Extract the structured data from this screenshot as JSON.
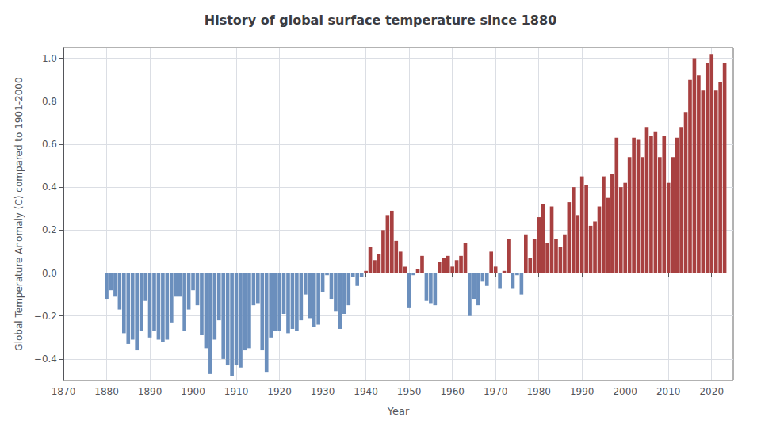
{
  "chart_data": {
    "type": "bar",
    "title": "History of global surface temperature since 1880",
    "xlabel": "Year",
    "ylabel": "Global Temperature Anomaly (C) compared to 1901-2000",
    "x": [
      1880,
      1881,
      1882,
      1883,
      1884,
      1885,
      1886,
      1887,
      1888,
      1889,
      1890,
      1891,
      1892,
      1893,
      1894,
      1895,
      1896,
      1897,
      1898,
      1899,
      1900,
      1901,
      1902,
      1903,
      1904,
      1905,
      1906,
      1907,
      1908,
      1909,
      1910,
      1911,
      1912,
      1913,
      1914,
      1915,
      1916,
      1917,
      1918,
      1919,
      1920,
      1921,
      1922,
      1923,
      1924,
      1925,
      1926,
      1927,
      1928,
      1929,
      1930,
      1931,
      1932,
      1933,
      1934,
      1935,
      1936,
      1937,
      1938,
      1939,
      1940,
      1941,
      1942,
      1943,
      1944,
      1945,
      1946,
      1947,
      1948,
      1949,
      1950,
      1951,
      1952,
      1953,
      1954,
      1955,
      1956,
      1957,
      1958,
      1959,
      1960,
      1961,
      1962,
      1963,
      1964,
      1965,
      1966,
      1967,
      1968,
      1969,
      1970,
      1971,
      1972,
      1973,
      1974,
      1975,
      1976,
      1977,
      1978,
      1979,
      1980,
      1981,
      1982,
      1983,
      1984,
      1985,
      1986,
      1987,
      1988,
      1989,
      1990,
      1991,
      1992,
      1993,
      1994,
      1995,
      1996,
      1997,
      1998,
      1999,
      2000,
      2001,
      2002,
      2003,
      2004,
      2005,
      2006,
      2007,
      2008,
      2009,
      2010,
      2011,
      2012,
      2013,
      2014,
      2015,
      2016,
      2017,
      2018,
      2019,
      2020,
      2021,
      2022,
      2023
    ],
    "values": [
      -0.12,
      -0.08,
      -0.11,
      -0.17,
      -0.28,
      -0.33,
      -0.31,
      -0.36,
      -0.27,
      -0.13,
      -0.3,
      -0.27,
      -0.31,
      -0.32,
      -0.31,
      -0.23,
      -0.11,
      -0.11,
      -0.27,
      -0.17,
      -0.08,
      -0.15,
      -0.29,
      -0.35,
      -0.47,
      -0.31,
      -0.22,
      -0.4,
      -0.43,
      -0.48,
      -0.43,
      -0.44,
      -0.36,
      -0.35,
      -0.15,
      -0.14,
      -0.36,
      -0.46,
      -0.3,
      -0.27,
      -0.27,
      -0.19,
      -0.28,
      -0.26,
      -0.27,
      -0.22,
      -0.1,
      -0.21,
      -0.25,
      -0.24,
      -0.09,
      -0.01,
      -0.12,
      -0.18,
      -0.26,
      -0.19,
      -0.15,
      -0.02,
      -0.06,
      -0.02,
      0.01,
      0.12,
      0.06,
      0.09,
      0.2,
      0.27,
      0.29,
      0.15,
      0.1,
      0.03,
      -0.16,
      -0.01,
      0.02,
      0.08,
      -0.13,
      -0.14,
      -0.15,
      0.05,
      0.07,
      0.08,
      0.03,
      0.06,
      0.08,
      0.14,
      -0.2,
      -0.12,
      -0.15,
      -0.04,
      -0.06,
      0.1,
      0.03,
      -0.07,
      0.01,
      0.16,
      -0.07,
      -0.01,
      -0.1,
      0.18,
      0.07,
      0.16,
      0.26,
      0.32,
      0.14,
      0.31,
      0.16,
      0.12,
      0.18,
      0.33,
      0.4,
      0.27,
      0.45,
      0.41,
      0.22,
      0.24,
      0.31,
      0.45,
      0.35,
      0.46,
      0.63,
      0.4,
      0.42,
      0.54,
      0.63,
      0.62,
      0.54,
      0.68,
      0.64,
      0.66,
      0.54,
      0.64,
      0.42,
      0.54,
      0.63,
      0.68,
      0.75,
      0.9,
      1.0,
      0.92,
      0.85,
      0.98,
      1.02,
      0.85,
      0.89,
      0.98
    ],
    "colors": [
      "#6b8fbd",
      "#6b8fbd",
      "#6b8fbd",
      "#6b8fbd",
      "#6b8fbd",
      "#6b8fbd",
      "#6b8fbd",
      "#6b8fbd",
      "#6b8fbd",
      "#6b8fbd",
      "#6b8fbd",
      "#6b8fbd",
      "#6b8fbd",
      "#6b8fbd",
      "#6b8fbd",
      "#6b8fbd",
      "#6b8fbd",
      "#6b8fbd",
      "#6b8fbd",
      "#6b8fbd",
      "#6b8fbd",
      "#6b8fbd",
      "#6b8fbd",
      "#6b8fbd",
      "#6b8fbd",
      "#6b8fbd",
      "#6b8fbd",
      "#6b8fbd",
      "#6b8fbd",
      "#6b8fbd",
      "#6b8fbd",
      "#6b8fbd",
      "#6b8fbd",
      "#6b8fbd",
      "#6b8fbd",
      "#6b8fbd",
      "#6b8fbd",
      "#6b8fbd",
      "#6b8fbd",
      "#6b8fbd",
      "#6b8fbd",
      "#6b8fbd",
      "#6b8fbd",
      "#6b8fbd",
      "#6b8fbd",
      "#6b8fbd",
      "#6b8fbd",
      "#6b8fbd",
      "#6b8fbd",
      "#6b8fbd",
      "#6b8fbd",
      "#6b8fbd",
      "#6b8fbd",
      "#6b8fbd",
      "#6b8fbd",
      "#6b8fbd",
      "#6b8fbd",
      "#6b8fbd",
      "#6b8fbd",
      "#6b8fbd",
      "#a84040",
      "#a84040",
      "#a84040",
      "#a84040",
      "#a84040",
      "#a84040",
      "#a84040",
      "#a84040",
      "#a84040",
      "#a84040",
      "#6b8fbd",
      "#6b8fbd",
      "#a84040",
      "#a84040",
      "#6b8fbd",
      "#6b8fbd",
      "#6b8fbd",
      "#a84040",
      "#a84040",
      "#a84040",
      "#a84040",
      "#a84040",
      "#a84040",
      "#a84040",
      "#6b8fbd",
      "#6b8fbd",
      "#6b8fbd",
      "#6b8fbd",
      "#6b8fbd",
      "#a84040",
      "#a84040",
      "#6b8fbd",
      "#a84040",
      "#a84040",
      "#6b8fbd",
      "#6b8fbd",
      "#6b8fbd",
      "#a84040",
      "#a84040",
      "#a84040",
      "#a84040",
      "#a84040",
      "#a84040",
      "#a84040",
      "#a84040",
      "#a84040",
      "#a84040",
      "#a84040",
      "#a84040",
      "#a84040",
      "#a84040",
      "#a84040",
      "#a84040",
      "#a84040",
      "#a84040",
      "#a84040",
      "#a84040",
      "#a84040",
      "#a84040",
      "#a84040",
      "#a84040",
      "#a84040",
      "#a84040",
      "#a84040",
      "#a84040",
      "#a84040",
      "#a84040",
      "#a84040",
      "#a84040",
      "#a84040",
      "#a84040",
      "#a84040",
      "#a84040",
      "#a84040",
      "#a84040",
      "#a84040",
      "#a84040",
      "#a84040",
      "#a84040",
      "#a84040",
      "#a84040",
      "#a84040",
      "#a84040",
      "#a84040"
    ],
    "xlim": [
      1870,
      2025
    ],
    "ylim": [
      -0.5,
      1.05
    ],
    "xticks": [
      1870,
      1880,
      1890,
      1900,
      1910,
      1920,
      1930,
      1940,
      1950,
      1960,
      1970,
      1980,
      1990,
      2000,
      2010,
      2020
    ],
    "yticks": [
      {
        "value": -0.4,
        "label": "−0.4"
      },
      {
        "value": -0.2,
        "label": "−0.2"
      },
      {
        "value": 0.0,
        "label": "0.0"
      },
      {
        "value": 0.2,
        "label": "0.2"
      },
      {
        "value": 0.4,
        "label": "0.4"
      },
      {
        "value": 0.6,
        "label": "0.6"
      },
      {
        "value": 0.8,
        "label": "0.8"
      },
      {
        "value": 1.0,
        "label": "1.0"
      }
    ],
    "grid": true
  }
}
